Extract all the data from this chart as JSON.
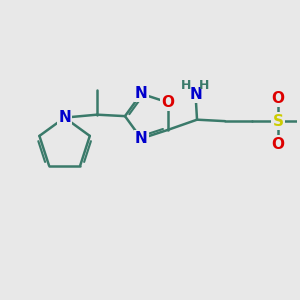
{
  "background_color": "#e8e8e8",
  "bond_color": "#3a7a6a",
  "bond_width": 1.8,
  "atom_colors": {
    "N": "#0000cc",
    "O": "#dd0000",
    "S": "#cccc00",
    "C": "#3a7a6a"
  },
  "font_size_atom": 11,
  "font_size_h": 9,
  "figsize": [
    3.0,
    3.0
  ],
  "dpi": 100
}
